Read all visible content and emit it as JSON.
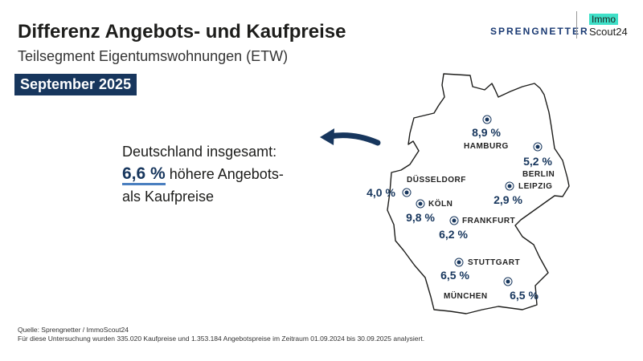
{
  "header": {
    "title": "Differenz Angebots- und Kaufpreise",
    "subtitle": "Teilsegment Eigentumswohnungen (ETW)",
    "date_badge": "September 2025"
  },
  "logos": {
    "sprengnetter": "SPRENGNETTER",
    "immo": "Immo",
    "scout": "Scout24"
  },
  "summary": {
    "line1": "Deutschland insgesamt:",
    "value": "6,6 %",
    "line2_rest": " höhere Angebots-",
    "line3": "als Kaufpreise"
  },
  "cities": [
    {
      "name": "HAMBURG",
      "value": "8,9 %"
    },
    {
      "name": "BERLIN",
      "value": "5,2 %"
    },
    {
      "name": "LEIPZIG",
      "value": "2,9 %"
    },
    {
      "name": "DÜSSELDORF",
      "value": "4,0 %"
    },
    {
      "name": "KÖLN",
      "value": "9,8 %"
    },
    {
      "name": "FRANKFURT",
      "value": "6,2 %"
    },
    {
      "name": "STUTTGART",
      "value": "6,5 %"
    },
    {
      "name": "MÜNCHEN",
      "value": "6,5 %"
    }
  ],
  "footer": {
    "source": "Quelle: Sprengnetter / ImmoScout24",
    "note": "Für diese Untersuchung wurden 335.020 Kaufpreise und 1.353.184 Angebotspreise im Zeitraum 01.09.2024 bis 30.09.2025 analysiert."
  },
  "colors": {
    "navy": "#17365d",
    "accent": "#3fe0c8"
  }
}
